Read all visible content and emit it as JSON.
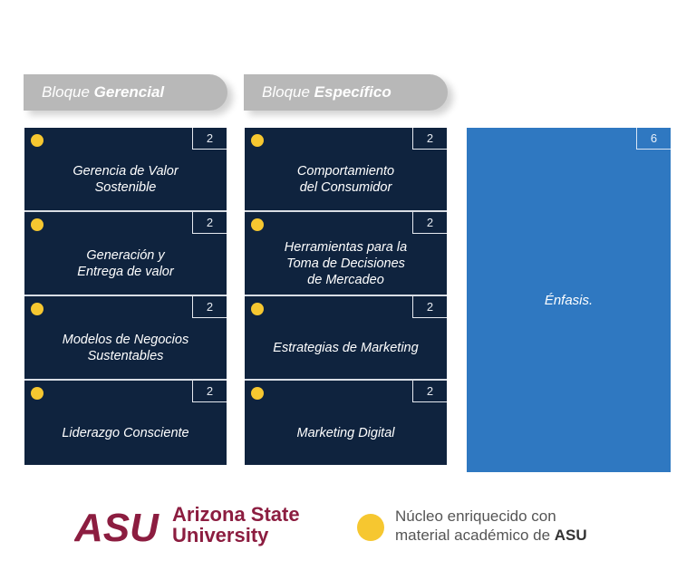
{
  "blocks": [
    {
      "tab_prefix": "Bloque",
      "tab_bold": "Gerencial",
      "items": [
        {
          "label": "Gerencia de Valor\nSostenible",
          "credits": "2"
        },
        {
          "label": "Generación y\nEntrega de valor",
          "credits": "2"
        },
        {
          "label": "Modelos de Negocios\nSustentables",
          "credits": "2"
        },
        {
          "label": "Liderazgo Consciente",
          "credits": "2"
        }
      ]
    },
    {
      "tab_prefix": "Bloque",
      "tab_bold": "Específico",
      "items": [
        {
          "label": "Comportamiento\ndel Consumidor",
          "credits": "2"
        },
        {
          "label": "Herramientas para la\nToma de Decisiones\nde Mercadeo",
          "credits": "2"
        },
        {
          "label": "Estrategias de Marketing",
          "credits": "2"
        },
        {
          "label": "Marketing Digital",
          "credits": "2"
        }
      ]
    }
  ],
  "emphasis": {
    "label": "Énfasis.",
    "credits": "6"
  },
  "logo": {
    "mark": "ASU",
    "line1": "Arizona State",
    "line2": "University"
  },
  "legend": {
    "line1": "Núcleo enriquecido con",
    "line2_prefix": "material académico de",
    "line2_bold": "ASU"
  },
  "colors": {
    "dark_cell": "#0f233e",
    "emphasis": "#2f78c1",
    "dot": "#f6c730",
    "asu_maroon": "#8c1d40",
    "tab": "#b8b8b8"
  }
}
